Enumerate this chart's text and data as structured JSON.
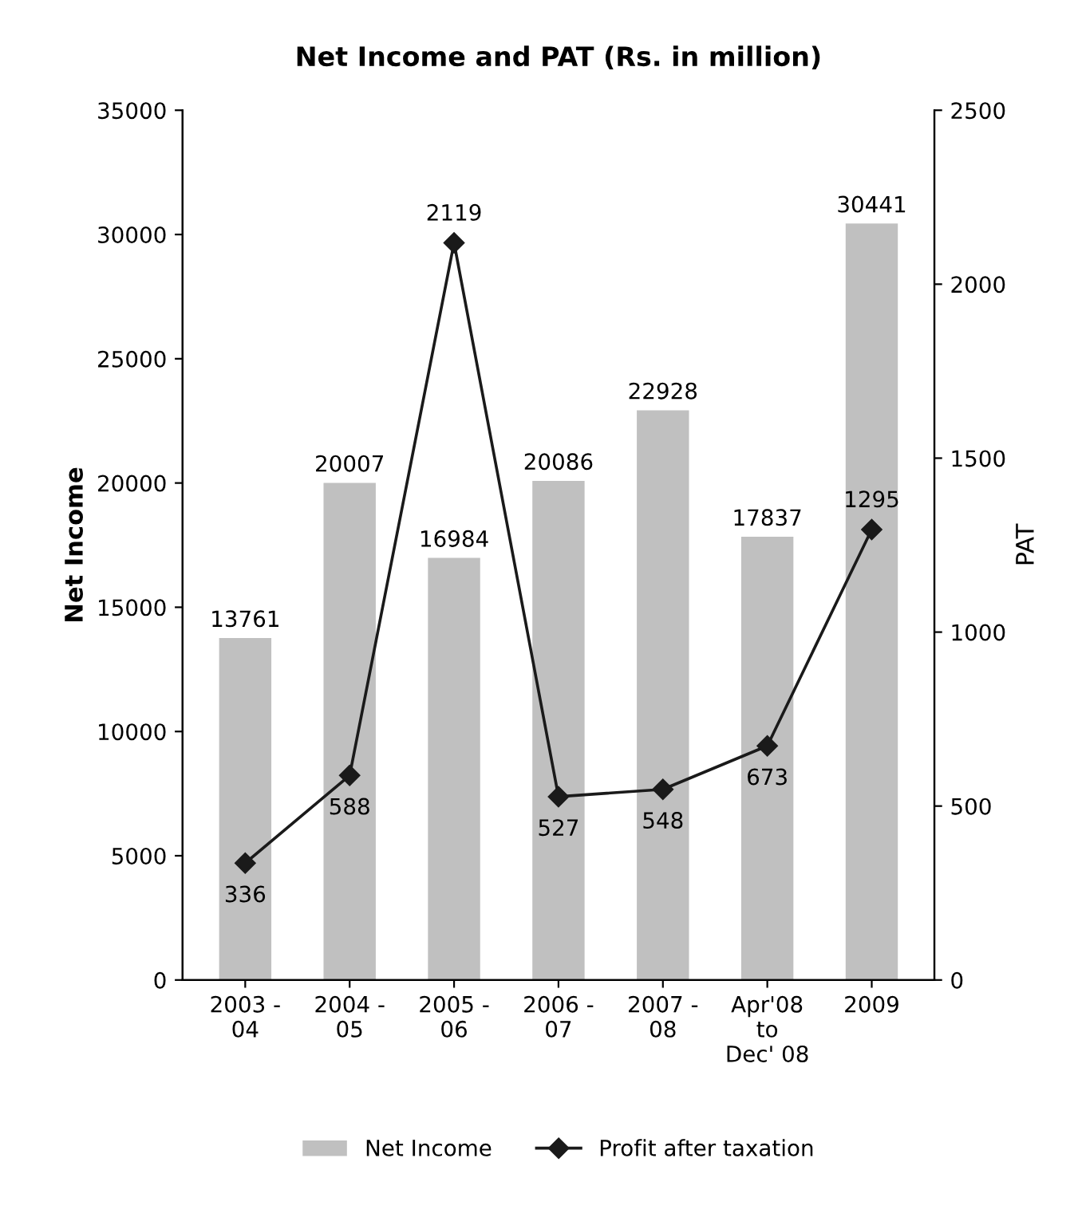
{
  "chart_data": {
    "type": "bar",
    "title": "Net Income and PAT (Rs. in million)",
    "ylabel": "Net Income",
    "y2label": "PAT",
    "categories": [
      "2003 -\n04",
      "2004 -\n05",
      "2005 -\n06",
      "2006 -\n07",
      "2007 -\n08",
      "Apr'08\nto\nDec' 08",
      "2009"
    ],
    "series": [
      {
        "name": "Net Income",
        "color": "#c0c0c0",
        "values": [
          13761,
          20007,
          16984,
          20086,
          22928,
          17837,
          30441
        ]
      },
      {
        "name": "Profit after taxation",
        "type": "line",
        "axis": "y2",
        "color": "#1a1a1a",
        "marker": "diamond",
        "values": [
          336,
          588,
          2119,
          527,
          548,
          673,
          1295
        ]
      }
    ],
    "ylim": [
      0,
      35000
    ],
    "yticks": [
      0,
      5000,
      10000,
      15000,
      20000,
      25000,
      30000,
      35000
    ],
    "y2lim": [
      0,
      2500
    ],
    "y2ticks": [
      0,
      500,
      1000,
      1500,
      2000,
      2500
    ],
    "data_labels": true,
    "grid": false,
    "legend": "bottom"
  }
}
